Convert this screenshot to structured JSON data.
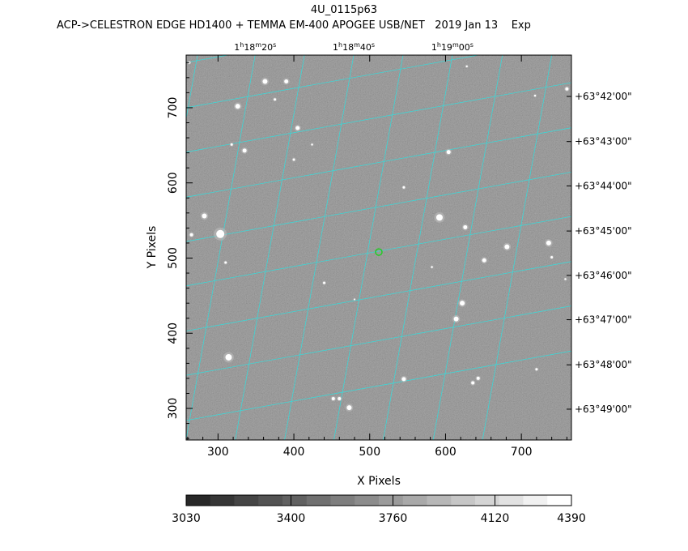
{
  "title": "4U_0115p63",
  "subtitle": "ACP->CELESTRON EDGE HD1400 + TEMMA EM-400 APOGEE USB/NET   2019 Jan 13    Exp",
  "colors": {
    "grid": "#2ee0e0",
    "marker": "#22cc22",
    "frame": "#000000"
  },
  "chart_data": {
    "type": "heatmap",
    "xlabel": "X Pixels",
    "ylabel": "Y Pixels",
    "xlim": [
      258,
      766
    ],
    "ylim": [
      258,
      770
    ],
    "x_ticks": [
      300,
      400,
      500,
      600,
      700
    ],
    "y_ticks": [
      300,
      400,
      500,
      600,
      700
    ],
    "ra_ticks": [
      {
        "h": "1",
        "m": "18",
        "s": "20",
        "x": 349
      },
      {
        "h": "1",
        "m": "18",
        "s": "40",
        "x": 479
      },
      {
        "h": "1",
        "m": "19",
        "s": "00",
        "x": 609
      }
    ],
    "dec_ticks": [
      {
        "label": "+63°42'00\"",
        "y": 715
      },
      {
        "label": "+63°43'00\"",
        "y": 655
      },
      {
        "label": "+63°44'00\"",
        "y": 596
      },
      {
        "label": "+63°45'00\"",
        "y": 536
      },
      {
        "label": "+63°46'00\"",
        "y": 477
      },
      {
        "label": "+63°47'00\"",
        "y": 418
      },
      {
        "label": "+63°48'00\"",
        "y": 358
      },
      {
        "label": "+63°49'00\"",
        "y": 299
      }
    ],
    "grid_lines": {
      "ra_x_at_top": [
        273,
        349,
        414,
        479,
        544,
        609,
        675,
        740
      ],
      "dec_y_at_left": [
        760,
        700,
        641,
        581,
        522,
        463,
        403,
        344,
        284
      ],
      "ra_slope": -0.18,
      "dec_slope": 0.18
    },
    "target": {
      "x": 512,
      "y": 508
    },
    "stars": [
      {
        "x": 362,
        "y": 735,
        "r": 3
      },
      {
        "x": 390,
        "y": 735,
        "r": 2.5
      },
      {
        "x": 375,
        "y": 711,
        "r": 1.5
      },
      {
        "x": 326,
        "y": 702,
        "r": 3
      },
      {
        "x": 405,
        "y": 673,
        "r": 2.5
      },
      {
        "x": 335,
        "y": 643,
        "r": 2.5
      },
      {
        "x": 318,
        "y": 651,
        "r": 1.5
      },
      {
        "x": 400,
        "y": 631,
        "r": 1.5
      },
      {
        "x": 424,
        "y": 651,
        "r": 1.2
      },
      {
        "x": 604,
        "y": 641,
        "r": 2.5
      },
      {
        "x": 545,
        "y": 594,
        "r": 1.5
      },
      {
        "x": 282,
        "y": 556,
        "r": 3
      },
      {
        "x": 303,
        "y": 532,
        "r": 5
      },
      {
        "x": 265,
        "y": 531,
        "r": 2
      },
      {
        "x": 310,
        "y": 494,
        "r": 1.5
      },
      {
        "x": 592,
        "y": 554,
        "r": 4
      },
      {
        "x": 626,
        "y": 541,
        "r": 2.5
      },
      {
        "x": 681,
        "y": 515,
        "r": 3
      },
      {
        "x": 736,
        "y": 520,
        "r": 3
      },
      {
        "x": 651,
        "y": 497,
        "r": 2.5
      },
      {
        "x": 740,
        "y": 501,
        "r": 1.5
      },
      {
        "x": 440,
        "y": 467,
        "r": 1.5
      },
      {
        "x": 622,
        "y": 440,
        "r": 3
      },
      {
        "x": 614,
        "y": 419,
        "r": 3
      },
      {
        "x": 582,
        "y": 488,
        "r": 1.2
      },
      {
        "x": 314,
        "y": 368,
        "r": 4
      },
      {
        "x": 545,
        "y": 339,
        "r": 2.5
      },
      {
        "x": 643,
        "y": 340,
        "r": 2
      },
      {
        "x": 636,
        "y": 334,
        "r": 2
      },
      {
        "x": 473,
        "y": 301,
        "r": 3
      },
      {
        "x": 460,
        "y": 313,
        "r": 2
      },
      {
        "x": 452,
        "y": 313,
        "r": 2
      },
      {
        "x": 720,
        "y": 352,
        "r": 1.5
      },
      {
        "x": 718,
        "y": 716,
        "r": 1.2
      },
      {
        "x": 760,
        "y": 725,
        "r": 2
      },
      {
        "x": 758,
        "y": 472,
        "r": 1.2
      },
      {
        "x": 628,
        "y": 755,
        "r": 1.2
      },
      {
        "x": 262,
        "y": 760,
        "r": 1.5
      },
      {
        "x": 480,
        "y": 445,
        "r": 1
      }
    ],
    "colorbar": {
      "min": 3030,
      "max": 4390,
      "tick_labels": [
        3030,
        3400,
        3760,
        4120,
        4390
      ],
      "levels": 16
    }
  }
}
